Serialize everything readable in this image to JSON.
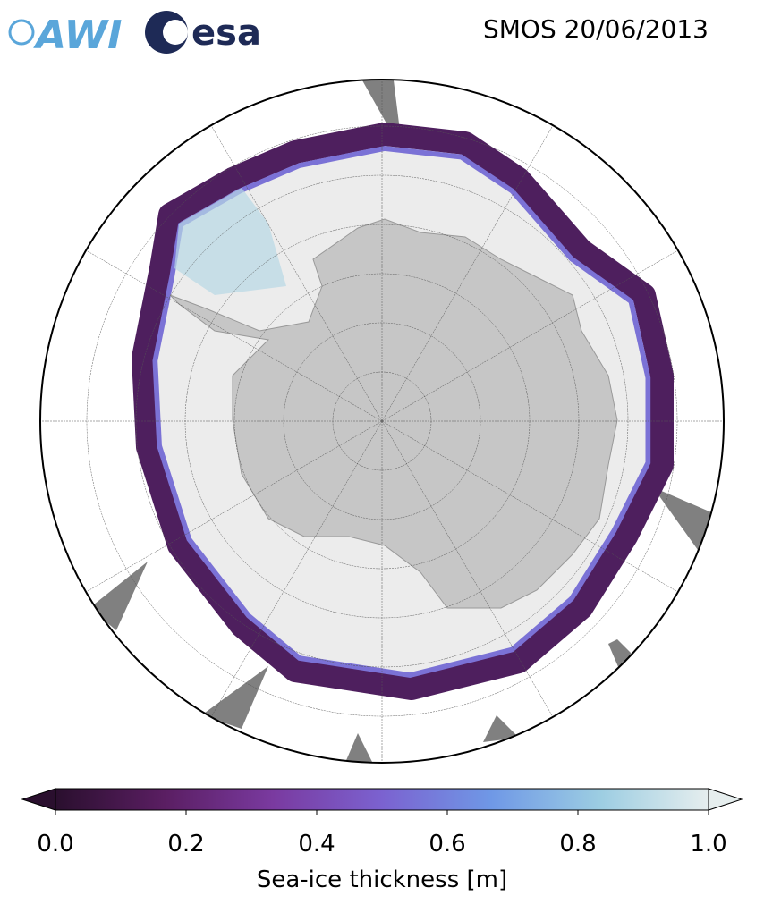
{
  "logos": {
    "awi": "AWI",
    "esa": "esa"
  },
  "title": "SMOS 20/06/2013",
  "colorbar": {
    "label": "Sea-ice thickness [m]",
    "lim": [
      0,
      1
    ],
    "ticks": [
      {
        "value": 0,
        "label": "0.0"
      },
      0.2,
      0.4,
      0.6,
      0.8,
      {
        "value": 1,
        "label": "1.0"
      }
    ],
    "colors": [
      "#2a0f2e",
      "#5a1e62",
      "#7a3aa0",
      "#7b62d0",
      "#6f98e6",
      "#9ccde2",
      "#e6eeee"
    ],
    "extend": "both"
  }
}
